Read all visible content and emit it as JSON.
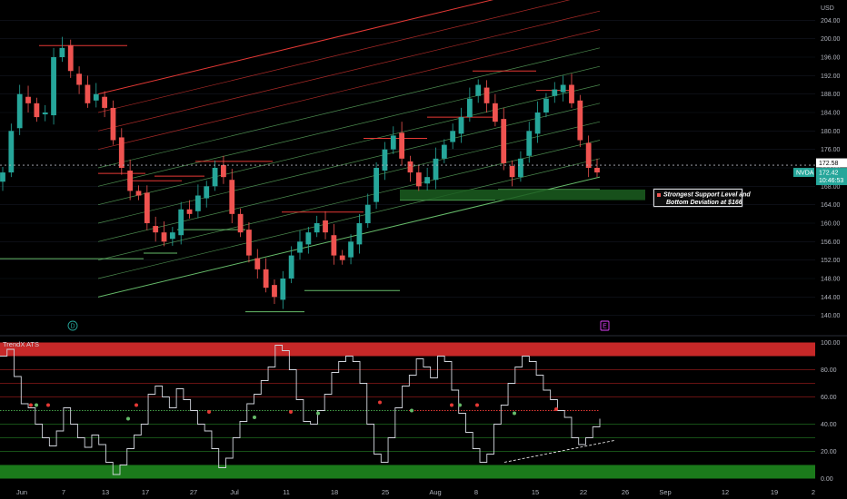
{
  "chart_data": [
    {
      "type": "candlestick",
      "symbol": "NVDA",
      "currency": "USD",
      "price_scale_label": "USD",
      "y_ticks": [
        140.0,
        144.0,
        148.0,
        152.0,
        156.0,
        160.0,
        164.0,
        168.0,
        172.0,
        176.0,
        180.0,
        184.0,
        188.0,
        192.0,
        196.0,
        200.0,
        204.0
      ],
      "y_tick_labels": [
        "140.00",
        "144.00",
        "148.00",
        "152.00",
        "156.00",
        "160.00",
        "164.00",
        "168.00",
        "172.00",
        "176.00",
        "180.00",
        "184.00",
        "188.00",
        "192.00",
        "196.00",
        "200.00",
        "204.00"
      ],
      "ylim": [
        136,
        208
      ],
      "x_dates": [
        "Jun",
        "7",
        "13",
        "17",
        "27",
        "Jul",
        "11",
        "18",
        "25",
        "Aug",
        "8",
        "15",
        "22",
        "26",
        "Sep",
        "12",
        "19",
        "2"
      ],
      "last_price": "172.58",
      "nvda_price": "172.42",
      "countdown": "10:46:53",
      "symbol_tag": "NVDA",
      "current_price_line": 172.58,
      "support_zone": [
        165,
        167.3
      ],
      "annotation": "Strongest Support Level and Bottom Deviation at $166",
      "markers": [
        "D",
        "E"
      ],
      "close_series": [
        171,
        180,
        188,
        186,
        183,
        184,
        196,
        198,
        193,
        190,
        186,
        188,
        185,
        178,
        172,
        167,
        166,
        160,
        158,
        156,
        158,
        163,
        162,
        166,
        168,
        172,
        170,
        162,
        158,
        153,
        150,
        146,
        144,
        148,
        153,
        156,
        158,
        160,
        158,
        153,
        152,
        156,
        160,
        164,
        172,
        176,
        179,
        174,
        171,
        168,
        170,
        174,
        177,
        180,
        183,
        187,
        190,
        186,
        182,
        173,
        170,
        174,
        180,
        184,
        187,
        189,
        190,
        186,
        178,
        172,
        171
      ]
    },
    {
      "type": "line",
      "title": "TrendX ATS",
      "y_ticks": [
        0.0,
        20.0,
        40.0,
        60.0,
        80.0,
        100.0
      ],
      "y_tick_labels": [
        "0.00",
        "20.00",
        "40.00",
        "60.00",
        "80.00",
        "100.00"
      ],
      "ylim": [
        -3,
        103
      ],
      "zones": {
        "overbought": [
          90,
          100
        ],
        "oversold": [
          0,
          10
        ]
      },
      "midline": 50,
      "values": [
        90,
        95,
        75,
        55,
        52,
        40,
        30,
        24,
        35,
        52,
        40,
        30,
        23,
        32,
        25,
        12,
        3,
        10,
        22,
        32,
        40,
        62,
        68,
        60,
        52,
        66,
        58,
        50,
        40,
        35,
        22,
        8,
        15,
        30,
        42,
        55,
        62,
        72,
        82,
        98,
        94,
        80,
        58,
        42,
        40,
        50,
        62,
        78,
        86,
        90,
        86,
        70,
        40,
        18,
        12,
        30,
        52,
        68,
        76,
        88,
        82,
        74,
        90,
        86,
        65,
        48,
        34,
        22,
        12,
        18,
        40,
        54,
        70,
        82,
        90,
        86,
        76,
        65,
        58,
        50,
        45,
        30,
        25,
        30,
        38,
        44
      ],
      "divergence_line": [
        [
          0.0,
          12
        ],
        [
          1.0,
          28
        ]
      ]
    }
  ],
  "colors": {
    "background": "#000000",
    "bull": "#26a69a",
    "bear": "#ef5350",
    "channel_red": "#e53935",
    "channel_green": "#66bb6a",
    "support_zone": "#1b5e20",
    "overbought_zone": "#c62828",
    "oversold_zone": "#1b7a1b",
    "nvda_tag": "#26a69a"
  }
}
